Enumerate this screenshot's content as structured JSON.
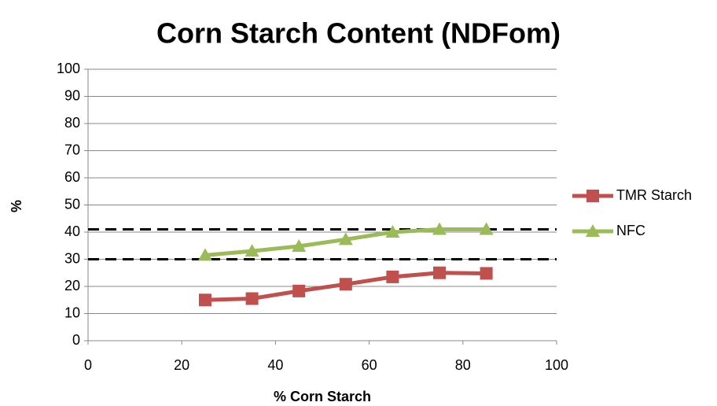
{
  "chart_data": {
    "type": "line",
    "title": "Corn Starch Content (NDFom)",
    "xlabel": "% Corn Starch",
    "ylabel": "%",
    "x": [
      25,
      35,
      45,
      55,
      65,
      75,
      85
    ],
    "series": [
      {
        "name": "TMR Starch",
        "color": "#c0504d",
        "marker": "square",
        "values": [
          15,
          15.5,
          18.3,
          20.8,
          23.5,
          25,
          24.8
        ]
      },
      {
        "name": "NFC",
        "color": "#9bbb59",
        "marker": "triangle",
        "values": [
          31.5,
          33,
          34.8,
          37.3,
          40,
          41,
          41
        ]
      }
    ],
    "reference_lines": [
      41,
      30
    ],
    "xlim": [
      0,
      100
    ],
    "xticks": [
      0,
      20,
      40,
      60,
      80,
      100
    ],
    "ylim": [
      0,
      100
    ],
    "yticks": [
      0,
      10,
      20,
      30,
      40,
      50,
      60,
      70,
      80,
      90,
      100
    ],
    "grid": true,
    "legend": "right"
  }
}
